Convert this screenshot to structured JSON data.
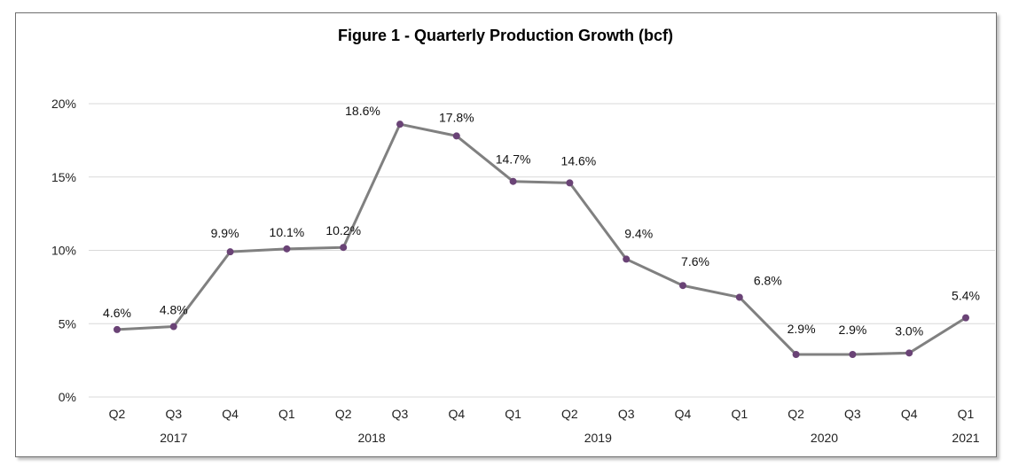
{
  "chart_data": {
    "type": "line",
    "title": "Figure 1 - Quarterly Production Growth (bcf)",
    "categories": [
      "Q2",
      "Q3",
      "Q4",
      "Q1",
      "Q2",
      "Q3",
      "Q4",
      "Q1",
      "Q2",
      "Q3",
      "Q4",
      "Q1",
      "Q2",
      "Q3",
      "Q4",
      "Q1"
    ],
    "years": [
      {
        "label": "2017",
        "start": 0,
        "end": 2
      },
      {
        "label": "2018",
        "start": 3,
        "end": 6
      },
      {
        "label": "2019",
        "start": 7,
        "end": 10
      },
      {
        "label": "2020",
        "start": 11,
        "end": 14
      },
      {
        "label": "2021",
        "start": 15,
        "end": 15
      }
    ],
    "series": [
      {
        "values": [
          4.6,
          4.8,
          9.9,
          10.1,
          10.2,
          18.6,
          17.8,
          14.7,
          14.6,
          9.4,
          7.6,
          6.8,
          2.9,
          2.9,
          3.0,
          5.4
        ],
        "labels": [
          "4.6%",
          "4.8%",
          "9.9%",
          "10.1%",
          "10.2%",
          "18.6%",
          "17.8%",
          "14.7%",
          "14.6%",
          "9.4%",
          "7.6%",
          "6.8%",
          "2.9%",
          "2.9%",
          "3.0%",
          "5.4%"
        ]
      }
    ],
    "yticks": [
      "0%",
      "5%",
      "10%",
      "15%",
      "20%"
    ],
    "ylim": [
      0,
      20
    ],
    "grid": true,
    "colors": {
      "line": "#808080",
      "marker": "#6a4376",
      "grid": "#d9d9d9"
    }
  }
}
